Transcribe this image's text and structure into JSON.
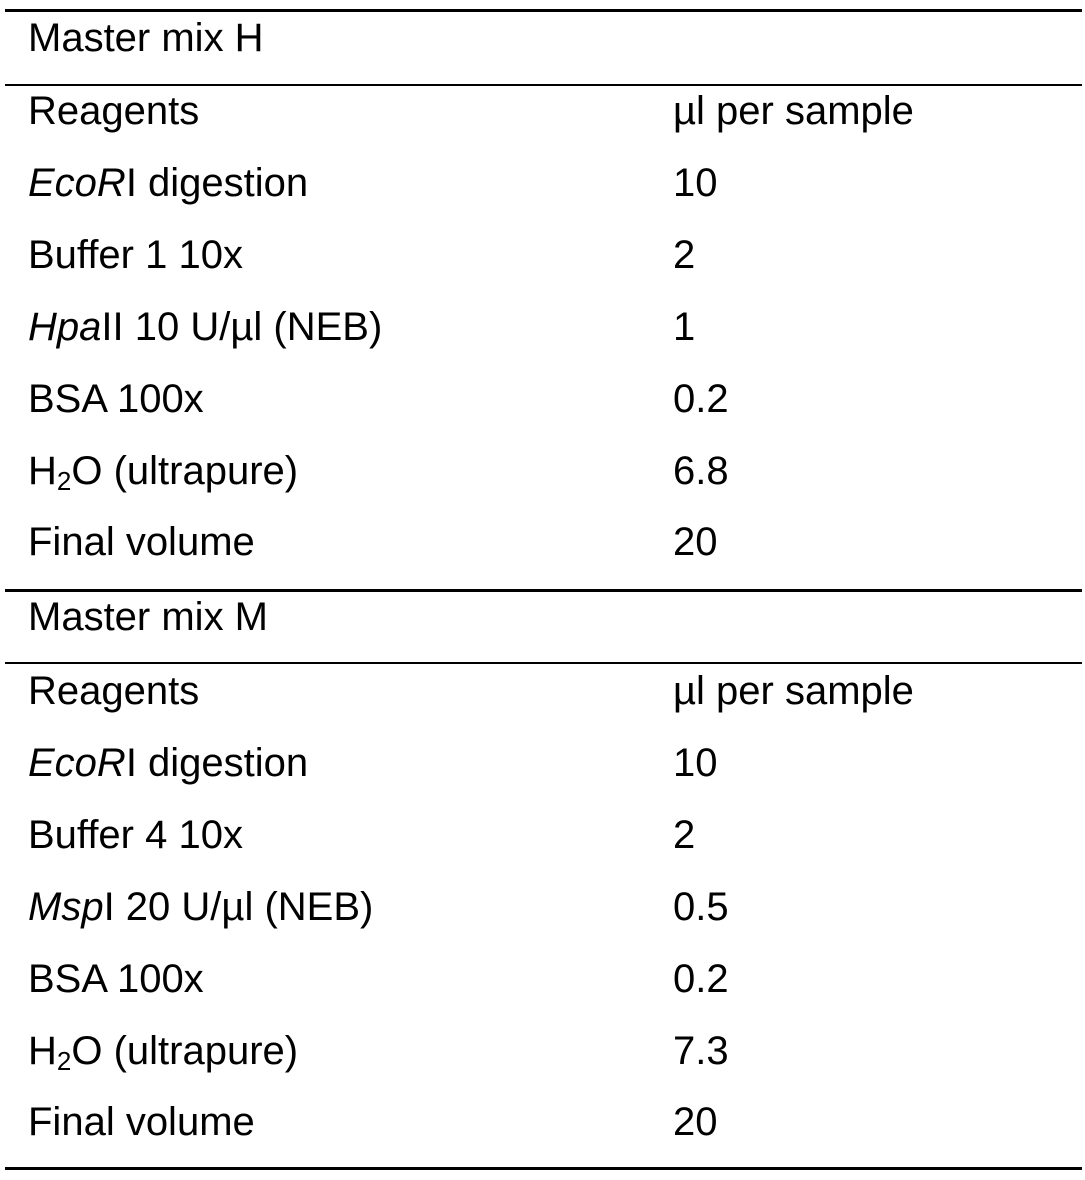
{
  "sections": [
    {
      "title": "Master mix H",
      "header": {
        "reagent": "Reagents",
        "volume": "µl per sample"
      },
      "rows": [
        {
          "italic": "EcoR",
          "rest": "I digestion",
          "value": "10"
        },
        {
          "text": "Buffer 1 10x",
          "value": "2"
        },
        {
          "italic": "Hpa",
          "rest": "II 10 U/µl (NEB)",
          "value": "1"
        },
        {
          "text": "BSA 100x",
          "value": "0.2"
        },
        {
          "pre": "H",
          "sub": "2",
          "post": "O (ultrapure)",
          "value": "6.8"
        },
        {
          "text": "Final volume",
          "value": "20"
        }
      ]
    },
    {
      "title": "Master mix M",
      "header": {
        "reagent": "Reagents",
        "volume": "µl per sample"
      },
      "rows": [
        {
          "italic": "EcoR",
          "rest": "I digestion",
          "value": "10"
        },
        {
          "text": "Buffer 4 10x",
          "value": "2"
        },
        {
          "italic": "Msp",
          "rest": "I 20 U/µl (NEB)",
          "value": "0.5"
        },
        {
          "text": "BSA 100x",
          "value": "0.2"
        },
        {
          "pre": "H",
          "sub": "2",
          "post": "O (ultrapure)",
          "value": "7.3"
        },
        {
          "text": "Final volume",
          "value": "20"
        }
      ]
    }
  ]
}
